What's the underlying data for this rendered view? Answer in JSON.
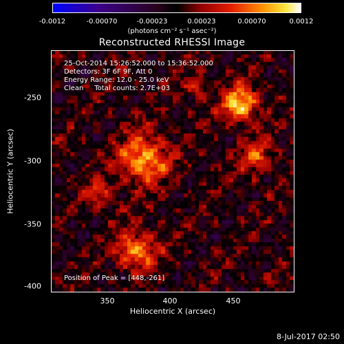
{
  "colorbar": {
    "tick_labels": [
      "-0.0012",
      "-0.00070",
      "-0.00023",
      "0.00023",
      "0.00070",
      "0.0012"
    ],
    "units_label": "(photons cm⁻² s⁻¹ asec⁻²)",
    "range": [
      -0.0012,
      0.0012
    ]
  },
  "title": "Reconstructed RHESSI Image",
  "info": {
    "time_range": "25-Oct-2014 15:26:52.000 to 15:36:52.000",
    "detectors": "Detectors: 3F 6F 9F, Att 0",
    "energy": "Energy Range: 12.0 - 25.0 keV",
    "clean": "Clean     Total counts: 2.7E+03",
    "peak": "Position of Peak = [448,-261]"
  },
  "axes": {
    "xlabel": "Heliocentric X (arcsec)",
    "ylabel": "Heliocentric Y (arcsec)",
    "xticks": [
      "350",
      "400",
      "450"
    ],
    "yticks": [
      "-250",
      "-300",
      "-350",
      "-400"
    ],
    "xlim": [
      305,
      495
    ],
    "ylim": [
      -405,
      -215
    ]
  },
  "datestamp": "8-Jul-2017 02:50",
  "colors": {
    "background": "#000000",
    "text": "#ffffff",
    "colormap": "IDL blue-black-red-yellow-white"
  }
}
